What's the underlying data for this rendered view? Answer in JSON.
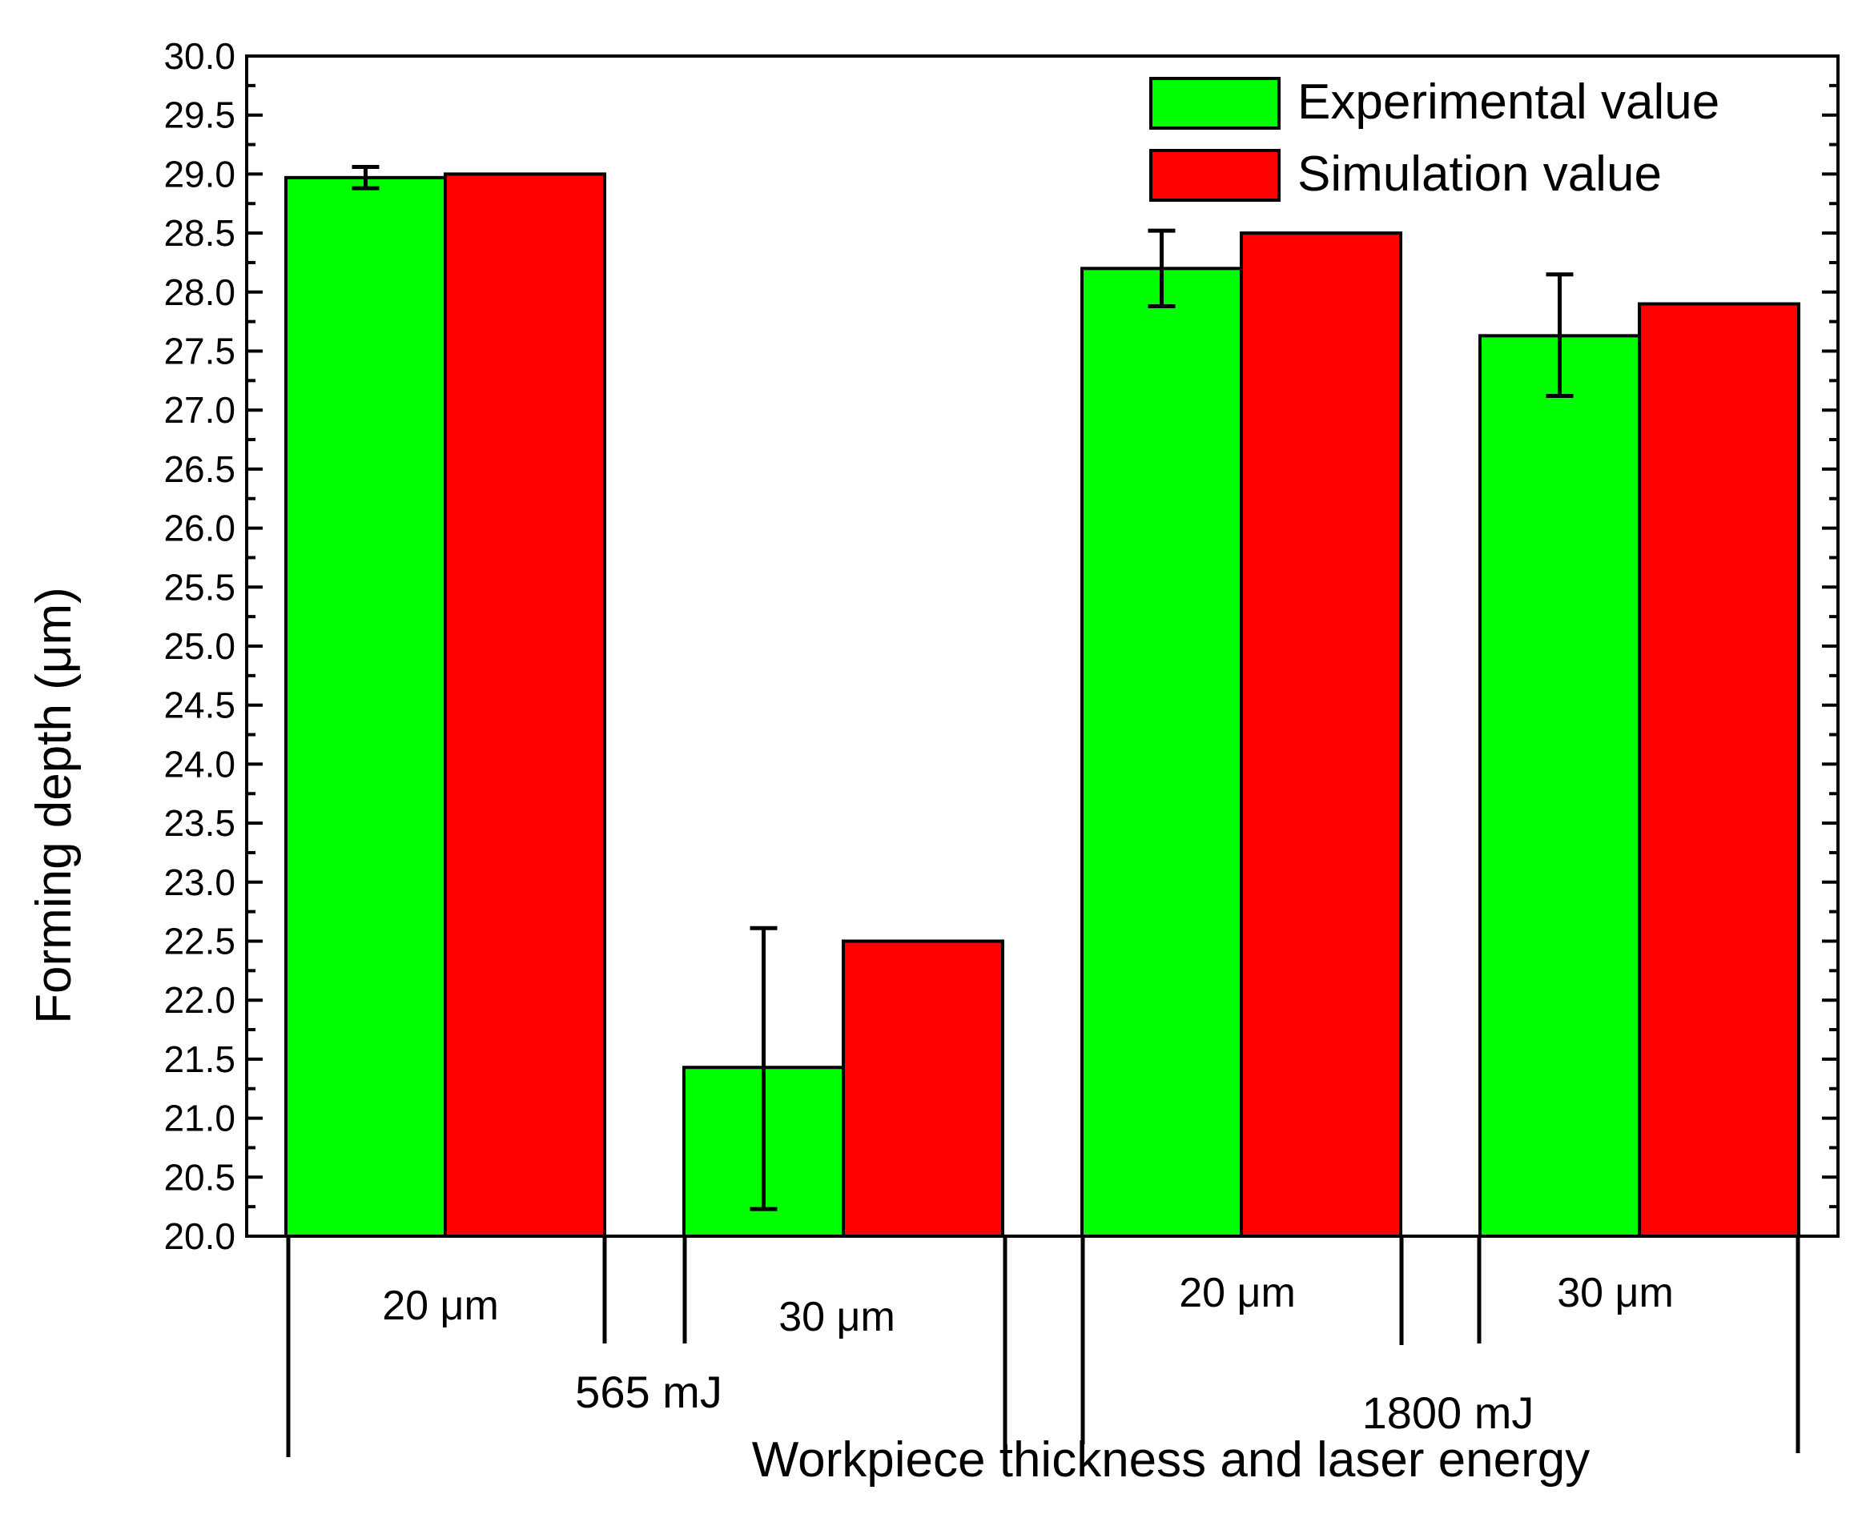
{
  "chart_data": {
    "type": "bar",
    "ylabel": "Forming depth (μm)",
    "xlabel": "Workpiece thickness and laser energy",
    "ylim": [
      20.0,
      30.0
    ],
    "ytick_step": 0.5,
    "ytick_labels": [
      "20.0",
      "20.5",
      "21.0",
      "21.5",
      "22.0",
      "22.5",
      "23.0",
      "23.5",
      "24.0",
      "24.5",
      "25.0",
      "25.5",
      "26.0",
      "26.5",
      "27.0",
      "27.5",
      "28.0",
      "28.5",
      "29.0",
      "29.5",
      "30.0"
    ],
    "groups": [
      {
        "label": "565 mJ",
        "categories": [
          "20 μm",
          "30 μm"
        ]
      },
      {
        "label": "1800 mJ",
        "categories": [
          "20 μm",
          "30 μm"
        ]
      }
    ],
    "series": [
      {
        "name": "Experimental value",
        "color": "#00ff00",
        "values": [
          28.97,
          21.43,
          28.2,
          27.63
        ],
        "error_low": [
          28.88,
          20.23,
          27.88,
          27.12
        ],
        "error_high": [
          29.06,
          22.61,
          28.52,
          28.15
        ]
      },
      {
        "name": "Simulation value",
        "color": "#ff0000",
        "values": [
          29.0,
          22.5,
          28.5,
          27.9
        ]
      }
    ],
    "legend_position": "top-right",
    "grid": false
  }
}
